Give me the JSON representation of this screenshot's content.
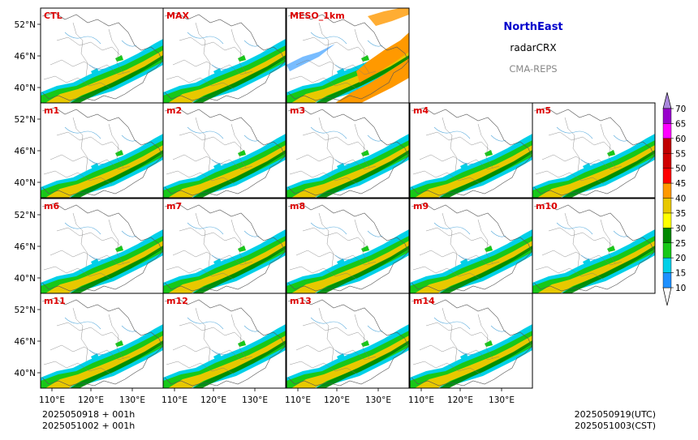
{
  "header": {
    "region": "NorthEast",
    "product": "radarCRX",
    "system": "CMA-REPS"
  },
  "colors": {
    "region_title": "#0000cc",
    "product": "#000000",
    "system": "#888888",
    "panel_label": "#dd0000"
  },
  "panels_row1": [
    "CTL",
    "MAX",
    "MESO_1km"
  ],
  "panels_members": [
    "m1",
    "m2",
    "m3",
    "m4",
    "m5",
    "m6",
    "m7",
    "m8",
    "m9",
    "m10",
    "m11",
    "m12",
    "m13",
    "m14"
  ],
  "axes": {
    "lat_ticks": [
      "52°N",
      "46°N",
      "40°N"
    ],
    "lon_ticks": [
      "110°E",
      "120°E",
      "130°E"
    ]
  },
  "colorbar": {
    "levels": [
      10,
      15,
      20,
      25,
      30,
      35,
      40,
      45,
      50,
      55,
      60,
      65,
      70
    ],
    "colors": [
      "#1e90ff",
      "#00d0e8",
      "#18c818",
      "#008800",
      "#ffff00",
      "#e8c800",
      "#ff9900",
      "#ff0000",
      "#d00000",
      "#c00000",
      "#ff00ff",
      "#9900cc",
      "#aa88dd"
    ]
  },
  "footer": {
    "init_utc": "2025050918  +  001h",
    "init_cst": "2025051002  +  001h",
    "valid_utc": "2025050919(UTC)",
    "valid_cst": "2025051003(CST)"
  }
}
